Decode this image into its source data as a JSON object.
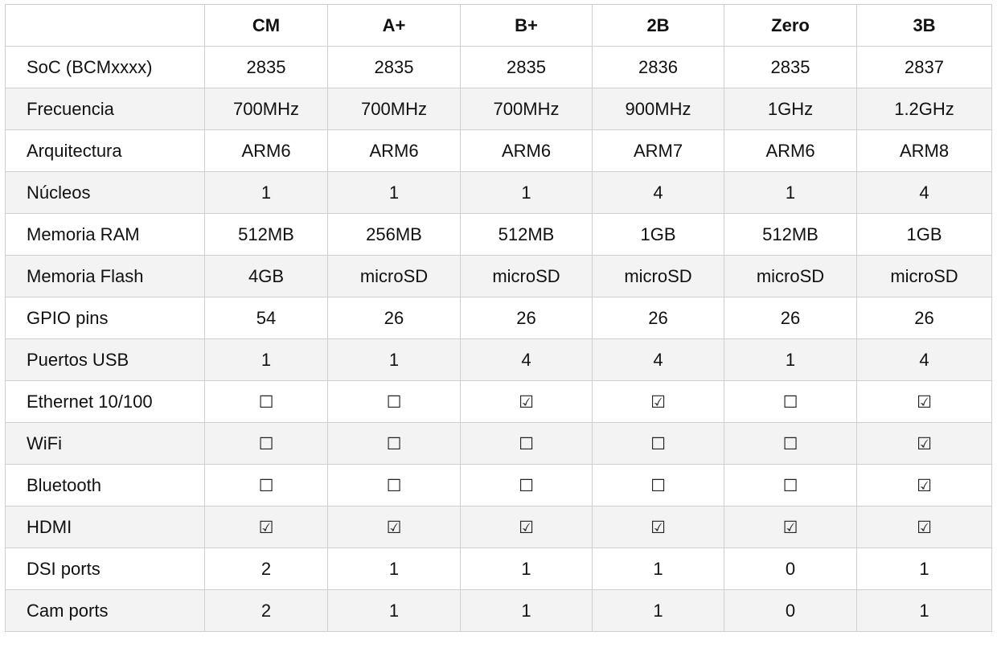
{
  "table": {
    "corner": "",
    "columns": [
      "CM",
      "A+",
      "B+",
      "2B",
      "Zero",
      "3B"
    ],
    "rows": [
      {
        "label": "SoC (BCMxxxx)",
        "cells": [
          "2835",
          "2835",
          "2835",
          "2836",
          "2835",
          "2837"
        ]
      },
      {
        "label": "Frecuencia",
        "cells": [
          "700MHz",
          "700MHz",
          "700MHz",
          "900MHz",
          "1GHz",
          "1.2GHz"
        ]
      },
      {
        "label": "Arquitectura",
        "cells": [
          "ARM6",
          "ARM6",
          "ARM6",
          "ARM7",
          "ARM6",
          "ARM8"
        ]
      },
      {
        "label": "Núcleos",
        "cells": [
          "1",
          "1",
          "1",
          "4",
          "1",
          "4"
        ]
      },
      {
        "label": "Memoria RAM",
        "cells": [
          "512MB",
          "256MB",
          "512MB",
          "1GB",
          "512MB",
          "1GB"
        ]
      },
      {
        "label": "Memoria Flash",
        "cells": [
          "4GB",
          "microSD",
          "microSD",
          "microSD",
          "microSD",
          "microSD"
        ]
      },
      {
        "label": "GPIO pins",
        "cells": [
          "54",
          "26",
          "26",
          "26",
          "26",
          "26"
        ]
      },
      {
        "label": "Puertos USB",
        "cells": [
          "1",
          "1",
          "4",
          "4",
          "1",
          "4"
        ]
      },
      {
        "label": "Ethernet 10/100",
        "cells": [
          "☐",
          "☐",
          "☑",
          "☑",
          "☐",
          "☑"
        ]
      },
      {
        "label": "WiFi",
        "cells": [
          "☐",
          "☐",
          "☐",
          "☐",
          "☐",
          "☑"
        ]
      },
      {
        "label": "Bluetooth",
        "cells": [
          "☐",
          "☐",
          "☐",
          "☐",
          "☐",
          "☑"
        ]
      },
      {
        "label": "HDMI",
        "cells": [
          "☑",
          "☑",
          "☑",
          "☑",
          "☑",
          "☑"
        ]
      },
      {
        "label": "DSI ports",
        "cells": [
          "2",
          "1",
          "1",
          "1",
          "0",
          "1"
        ]
      },
      {
        "label": "Cam ports",
        "cells": [
          "2",
          "1",
          "1",
          "1",
          "0",
          "1"
        ]
      }
    ]
  }
}
